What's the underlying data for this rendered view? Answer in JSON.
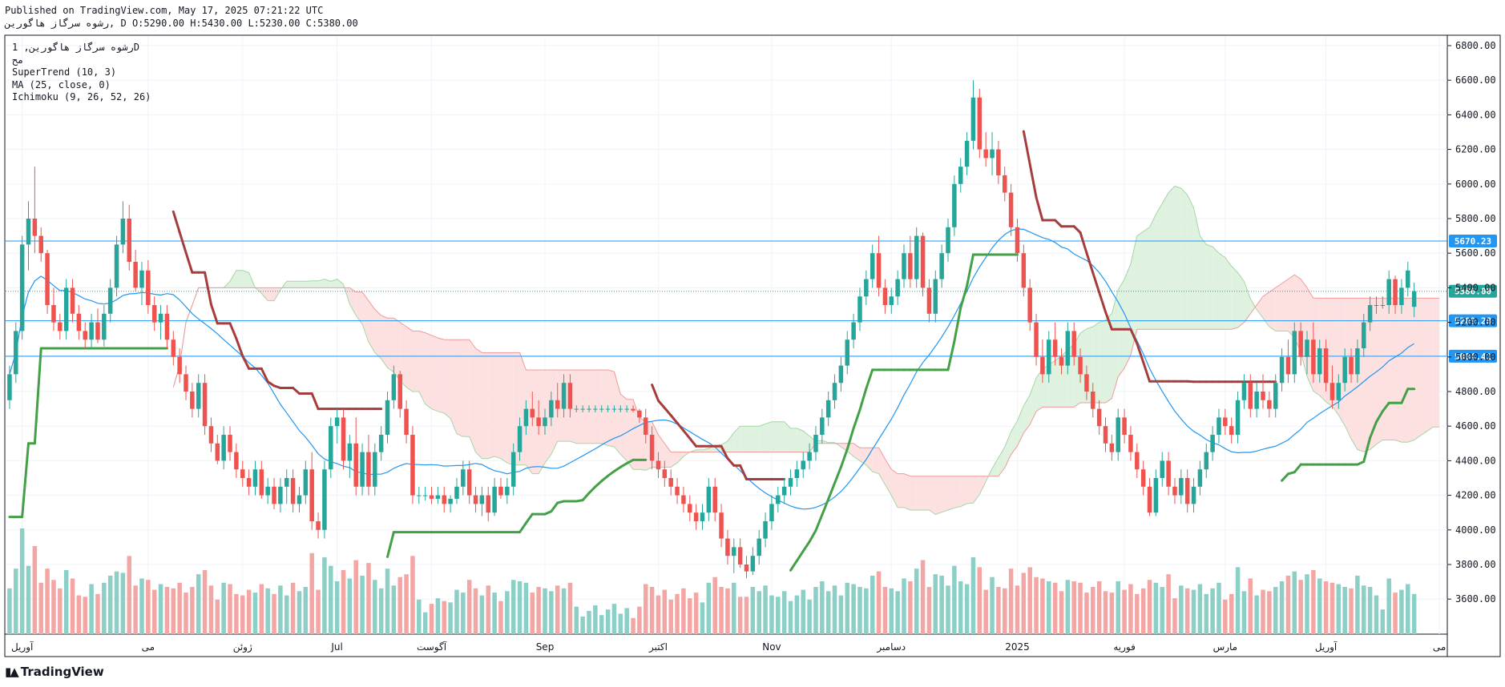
{
  "header": {
    "published": "Published on TradingView.com, May 17, 2025 07:21:22 UTC",
    "ohlc_line": "رشوه سرگاز هاگورین, D O:5290.00 H:5430.00 L:5230.00 C:5380.00"
  },
  "legend": {
    "symbol": "رشوه سرگاز هاگورین, 1D",
    "exchange": "مح",
    "supertrend": "SuperTrend (10, 3)",
    "ma": "MA (25, close, 0)",
    "ichimoku": "Ichimoku (9, 26, 52, 26)"
  },
  "brand": {
    "name": "TradingView",
    "logo_icon": "tradingview-logo-icon"
  },
  "colors": {
    "up": "#26a69a",
    "down": "#ef5350",
    "up_volume": "#8ccfc6",
    "down_volume": "#f4a6a4",
    "supertrend_up": "#43a047",
    "supertrend_down": "#a63d3d",
    "ma": "#2196f3",
    "level_line": "#2196f3",
    "cloud_bull": "#dff2df",
    "cloud_bear": "#fde1e1",
    "current_price": "#26a69a"
  },
  "chart_data": {
    "type": "candlestick",
    "y_axis": {
      "min": 3400,
      "max": 6900,
      "ticks": [
        3600,
        3800,
        4000,
        4200,
        4400,
        4600,
        4800,
        5000,
        5200,
        5400,
        5600,
        5800,
        6000,
        6200,
        6400,
        6600,
        6800
      ],
      "tick_labels": [
        "3600.00",
        "3800.00",
        "4000.00",
        "4200.00",
        "4400.00",
        "4600.00",
        "4800.00",
        "5000.00",
        "5200.00",
        "5400.00",
        "5600.00",
        "5800.00",
        "6000.00",
        "6200.00",
        "6400.00",
        "6600.00",
        "6800.00"
      ]
    },
    "x_axis": {
      "labels": [
        {
          "label": "آوریل",
          "index": 2
        },
        {
          "label": "می",
          "index": 22
        },
        {
          "label": "ژوئن",
          "index": 37
        },
        {
          "label": "Jul",
          "index": 52
        },
        {
          "label": "آگوست",
          "index": 67
        },
        {
          "label": "Sep",
          "index": 85
        },
        {
          "label": "اکتبر",
          "index": 103
        },
        {
          "label": "Nov",
          "index": 121
        },
        {
          "label": "دسامبر",
          "index": 140
        },
        {
          "label": "2025",
          "index": 160
        },
        {
          "label": "فوریه",
          "index": 177
        },
        {
          "label": "مارس",
          "index": 193
        },
        {
          "label": "آوریل",
          "index": 209
        },
        {
          "label": "می",
          "index": 227
        }
      ]
    },
    "horizontal_levels": [
      {
        "value": 5670.23,
        "label": "5670.23"
      },
      {
        "value": 5209.28,
        "label": "5209.28"
      },
      {
        "value": 5004.41,
        "label": "5004.41"
      }
    ],
    "current_price": {
      "value": 5380.0,
      "label": "5380.00"
    },
    "candles": [
      [
        4750,
        4950,
        4700,
        4900
      ],
      [
        4900,
        5200,
        4850,
        5150
      ],
      [
        5150,
        5700,
        5100,
        5650
      ],
      [
        5650,
        5900,
        5500,
        5800
      ],
      [
        5800,
        6100,
        5600,
        5700
      ],
      [
        5700,
        5750,
        5550,
        5600
      ],
      [
        5600,
        5620,
        5250,
        5300
      ],
      [
        5300,
        5400,
        5150,
        5200
      ],
      [
        5200,
        5250,
        5100,
        5150
      ],
      [
        5150,
        5450,
        5100,
        5400
      ],
      [
        5400,
        5450,
        5200,
        5250
      ],
      [
        5250,
        5300,
        5100,
        5150
      ],
      [
        5150,
        5200,
        5050,
        5100
      ],
      [
        5100,
        5250,
        5050,
        5200
      ],
      [
        5200,
        5280,
        5080,
        5100
      ],
      [
        5100,
        5300,
        5060,
        5250
      ],
      [
        5250,
        5450,
        5200,
        5400
      ],
      [
        5400,
        5700,
        5350,
        5650
      ],
      [
        5650,
        5900,
        5600,
        5800
      ],
      [
        5800,
        5880,
        5500,
        5550
      ],
      [
        5550,
        5620,
        5380,
        5400
      ],
      [
        5400,
        5550,
        5300,
        5500
      ],
      [
        5500,
        5560,
        5250,
        5300
      ],
      [
        5300,
        5350,
        5150,
        5200
      ],
      [
        5200,
        5300,
        5100,
        5250
      ],
      [
        5250,
        5300,
        5050,
        5100
      ],
      [
        5100,
        5150,
        4950,
        5000
      ],
      [
        5000,
        5050,
        4850,
        4900
      ],
      [
        4900,
        4950,
        4750,
        4800
      ],
      [
        4800,
        4850,
        4650,
        4700
      ],
      [
        4700,
        4900,
        4650,
        4850
      ],
      [
        4850,
        4900,
        4550,
        4600
      ],
      [
        4600,
        4650,
        4450,
        4500
      ],
      [
        4500,
        4550,
        4380,
        4400
      ],
      [
        4400,
        4600,
        4350,
        4550
      ],
      [
        4550,
        4600,
        4400,
        4450
      ],
      [
        4450,
        4500,
        4300,
        4350
      ],
      [
        4350,
        4400,
        4250,
        4300
      ],
      [
        4300,
        4350,
        4200,
        4250
      ],
      [
        4250,
        4400,
        4200,
        4350
      ],
      [
        4350,
        4400,
        4180,
        4200
      ],
      [
        4200,
        4300,
        4150,
        4250
      ],
      [
        4250,
        4300,
        4120,
        4150
      ],
      [
        4150,
        4300,
        4100,
        4250
      ],
      [
        4250,
        4350,
        4150,
        4300
      ],
      [
        4300,
        4350,
        4100,
        4150
      ],
      [
        4150,
        4250,
        4100,
        4200
      ],
      [
        4200,
        4400,
        4150,
        4350
      ],
      [
        4350,
        4450,
        4000,
        4050
      ],
      [
        4050,
        4100,
        3950,
        4000
      ],
      [
        4000,
        4400,
        3950,
        4350
      ],
      [
        4350,
        4650,
        4300,
        4600
      ],
      [
        4600,
        4700,
        4500,
        4650
      ],
      [
        4650,
        4700,
        4350,
        4400
      ],
      [
        4400,
        4550,
        4300,
        4500
      ],
      [
        4500,
        4650,
        4200,
        4250
      ],
      [
        4250,
        4500,
        4200,
        4450
      ],
      [
        4450,
        4550,
        4200,
        4250
      ],
      [
        4250,
        4500,
        4200,
        4450
      ],
      [
        4450,
        4600,
        4400,
        4550
      ],
      [
        4550,
        4800,
        4500,
        4750
      ],
      [
        4750,
        4950,
        4700,
        4900
      ],
      [
        4900,
        4920,
        4650,
        4700
      ],
      [
        4700,
        4750,
        4500,
        4550
      ],
      [
        4550,
        4600,
        4150,
        4200
      ],
      [
        4200,
        4250,
        4150,
        4200
      ],
      [
        4200,
        4250,
        4170,
        4200
      ],
      [
        4200,
        4250,
        4150,
        4180
      ],
      [
        4180,
        4250,
        4150,
        4200
      ],
      [
        4200,
        4250,
        4100,
        4150
      ],
      [
        4150,
        4200,
        4100,
        4180
      ],
      [
        4180,
        4300,
        4150,
        4250
      ],
      [
        4250,
        4400,
        4200,
        4350
      ],
      [
        4350,
        4400,
        4150,
        4200
      ],
      [
        4200,
        4250,
        4100,
        4150
      ],
      [
        4150,
        4250,
        4080,
        4200
      ],
      [
        4200,
        4250,
        4050,
        4100
      ],
      [
        4100,
        4300,
        4080,
        4250
      ],
      [
        4250,
        4300,
        4180,
        4200
      ],
      [
        4200,
        4300,
        4150,
        4250
      ],
      [
        4250,
        4500,
        4200,
        4450
      ],
      [
        4450,
        4650,
        4400,
        4600
      ],
      [
        4600,
        4750,
        4550,
        4700
      ],
      [
        4700,
        4800,
        4600,
        4650
      ],
      [
        4650,
        4750,
        4550,
        4600
      ],
      [
        4600,
        4700,
        4550,
        4650
      ],
      [
        4650,
        4800,
        4600,
        4750
      ],
      [
        4750,
        4850,
        4650,
        4700
      ],
      [
        4700,
        4900,
        4650,
        4850
      ],
      [
        4850,
        4900,
        4650,
        4700
      ],
      [
        4700,
        4720,
        4680,
        4700
      ],
      [
        4700,
        4720,
        4680,
        4700
      ],
      [
        4700,
        4720,
        4680,
        4700
      ],
      [
        4700,
        4720,
        4680,
        4700
      ],
      [
        4700,
        4720,
        4680,
        4700
      ],
      [
        4700,
        4720,
        4680,
        4700
      ],
      [
        4700,
        4720,
        4680,
        4700
      ],
      [
        4700,
        4720,
        4680,
        4700
      ],
      [
        4700,
        4720,
        4680,
        4700
      ],
      [
        4700,
        4720,
        4680,
        4690
      ],
      [
        4690,
        4700,
        4620,
        4650
      ],
      [
        4650,
        4700,
        4500,
        4550
      ],
      [
        4550,
        4600,
        4350,
        4400
      ],
      [
        4400,
        4450,
        4300,
        4350
      ],
      [
        4350,
        4400,
        4250,
        4300
      ],
      [
        4300,
        4350,
        4200,
        4250
      ],
      [
        4250,
        4300,
        4150,
        4200
      ],
      [
        4200,
        4250,
        4100,
        4150
      ],
      [
        4150,
        4200,
        4050,
        4100
      ],
      [
        4100,
        4150,
        4000,
        4050
      ],
      [
        4050,
        4150,
        4000,
        4100
      ],
      [
        4100,
        4300,
        4050,
        4250
      ],
      [
        4250,
        4300,
        4050,
        4100
      ],
      [
        4100,
        4150,
        3900,
        3950
      ],
      [
        3950,
        4000,
        3800,
        3850
      ],
      [
        3850,
        3950,
        3750,
        3900
      ],
      [
        3900,
        3950,
        3780,
        3800
      ],
      [
        3800,
        3850,
        3720,
        3760
      ],
      [
        3760,
        3900,
        3740,
        3850
      ],
      [
        3850,
        4000,
        3800,
        3950
      ],
      [
        3950,
        4100,
        3900,
        4050
      ],
      [
        4050,
        4200,
        4000,
        4150
      ],
      [
        4150,
        4250,
        4100,
        4200
      ],
      [
        4200,
        4300,
        4150,
        4250
      ],
      [
        4250,
        4350,
        4200,
        4300
      ],
      [
        4300,
        4400,
        4250,
        4350
      ],
      [
        4350,
        4450,
        4300,
        4400
      ],
      [
        4400,
        4500,
        4350,
        4450
      ],
      [
        4450,
        4600,
        4400,
        4550
      ],
      [
        4550,
        4700,
        4500,
        4650
      ],
      [
        4650,
        4800,
        4600,
        4750
      ],
      [
        4750,
        4900,
        4700,
        4850
      ],
      [
        4850,
        5000,
        4800,
        4950
      ],
      [
        4950,
        5150,
        4900,
        5100
      ],
      [
        5100,
        5250,
        5050,
        5200
      ],
      [
        5200,
        5400,
        5150,
        5350
      ],
      [
        5350,
        5500,
        5300,
        5450
      ],
      [
        5450,
        5650,
        5400,
        5600
      ],
      [
        5600,
        5700,
        5350,
        5400
      ],
      [
        5400,
        5450,
        5250,
        5300
      ],
      [
        5300,
        5400,
        5250,
        5350
      ],
      [
        5350,
        5500,
        5300,
        5450
      ],
      [
        5450,
        5650,
        5400,
        5600
      ],
      [
        5600,
        5700,
        5400,
        5450
      ],
      [
        5450,
        5750,
        5400,
        5700
      ],
      [
        5700,
        5720,
        5350,
        5400
      ],
      [
        5400,
        5450,
        5200,
        5250
      ],
      [
        5250,
        5500,
        5200,
        5450
      ],
      [
        5450,
        5650,
        5400,
        5600
      ],
      [
        5600,
        5800,
        5550,
        5750
      ],
      [
        5750,
        6050,
        5700,
        6000
      ],
      [
        6000,
        6150,
        5950,
        6100
      ],
      [
        6100,
        6300,
        6050,
        6250
      ],
      [
        6250,
        6600,
        6200,
        6500
      ],
      [
        6500,
        6550,
        6150,
        6200
      ],
      [
        6200,
        6300,
        6100,
        6150
      ],
      [
        6150,
        6300,
        6050,
        6200
      ],
      [
        6200,
        6250,
        6000,
        6050
      ],
      [
        6050,
        6100,
        5900,
        5950
      ],
      [
        5950,
        6000,
        5700,
        5750
      ],
      [
        5750,
        5800,
        5550,
        5600
      ],
      [
        5600,
        5650,
        5350,
        5400
      ],
      [
        5400,
        5450,
        5150,
        5200
      ],
      [
        5200,
        5250,
        4950,
        5000
      ],
      [
        5000,
        5100,
        4850,
        4900
      ],
      [
        4900,
        5150,
        4850,
        5100
      ],
      [
        5100,
        5200,
        4950,
        5000
      ],
      [
        5000,
        5050,
        4900,
        4950
      ],
      [
        4950,
        5200,
        4900,
        5150
      ],
      [
        5150,
        5200,
        4950,
        5000
      ],
      [
        5000,
        5050,
        4850,
        4900
      ],
      [
        4900,
        4950,
        4750,
        4800
      ],
      [
        4800,
        4850,
        4650,
        4700
      ],
      [
        4700,
        4750,
        4550,
        4600
      ],
      [
        4600,
        4650,
        4450,
        4500
      ],
      [
        4500,
        4550,
        4400,
        4450
      ],
      [
        4450,
        4700,
        4400,
        4650
      ],
      [
        4650,
        4700,
        4500,
        4550
      ],
      [
        4550,
        4600,
        4400,
        4450
      ],
      [
        4450,
        4500,
        4300,
        4350
      ],
      [
        4350,
        4400,
        4200,
        4250
      ],
      [
        4250,
        4300,
        4080,
        4100
      ],
      [
        4100,
        4350,
        4080,
        4300
      ],
      [
        4300,
        4450,
        4250,
        4400
      ],
      [
        4400,
        4450,
        4200,
        4250
      ],
      [
        4250,
        4300,
        4150,
        4200
      ],
      [
        4200,
        4350,
        4150,
        4300
      ],
      [
        4300,
        4350,
        4100,
        4150
      ],
      [
        4150,
        4300,
        4100,
        4250
      ],
      [
        4250,
        4400,
        4200,
        4350
      ],
      [
        4350,
        4500,
        4300,
        4450
      ],
      [
        4450,
        4600,
        4400,
        4550
      ],
      [
        4550,
        4700,
        4500,
        4650
      ],
      [
        4650,
        4700,
        4550,
        4600
      ],
      [
        4600,
        4650,
        4500,
        4550
      ],
      [
        4550,
        4800,
        4500,
        4750
      ],
      [
        4750,
        4900,
        4700,
        4850
      ],
      [
        4850,
        4900,
        4650,
        4700
      ],
      [
        4700,
        4850,
        4650,
        4800
      ],
      [
        4800,
        4900,
        4700,
        4750
      ],
      [
        4750,
        4800,
        4650,
        4700
      ],
      [
        4700,
        4900,
        4650,
        4850
      ],
      [
        4850,
        5050,
        4800,
        5000
      ],
      [
        5000,
        5100,
        4850,
        4900
      ],
      [
        4900,
        5200,
        4850,
        5150
      ],
      [
        5150,
        5200,
        4950,
        5000
      ],
      [
        5000,
        5150,
        4900,
        5100
      ],
      [
        5100,
        5200,
        4850,
        4900
      ],
      [
        4900,
        5100,
        4850,
        5050
      ],
      [
        5050,
        5100,
        4800,
        4850
      ],
      [
        4850,
        4950,
        4700,
        4750
      ],
      [
        4750,
        4900,
        4700,
        4850
      ],
      [
        4850,
        5050,
        4800,
        5000
      ],
      [
        5000,
        5050,
        4850,
        4900
      ],
      [
        4900,
        5100,
        4850,
        5050
      ],
      [
        5050,
        5250,
        5000,
        5200
      ],
      [
        5200,
        5350,
        5150,
        5300
      ],
      [
        5300,
        5350,
        5250,
        5300
      ],
      [
        5300,
        5350,
        5280,
        5300
      ],
      [
        5300,
        5500,
        5250,
        5450
      ],
      [
        5450,
        5470,
        5250,
        5300
      ],
      [
        5300,
        5450,
        5250,
        5400
      ],
      [
        5400,
        5550,
        5350,
        5500
      ],
      [
        5290,
        5430,
        5230,
        5380
      ]
    ],
    "volume_max": 3000
  }
}
